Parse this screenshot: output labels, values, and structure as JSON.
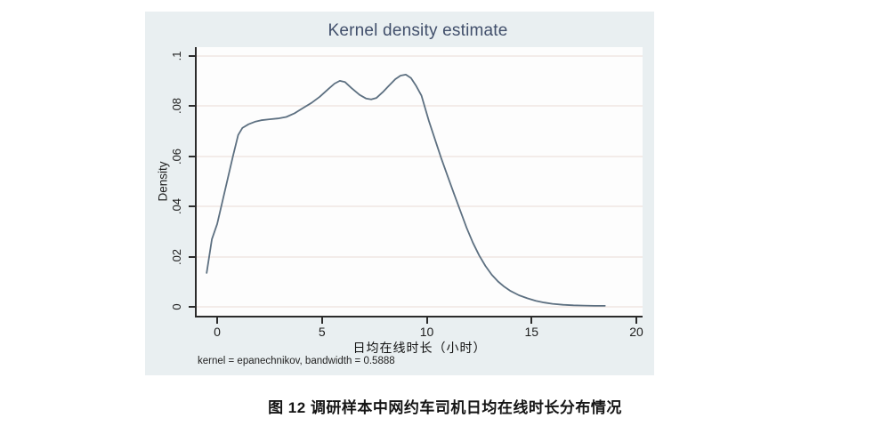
{
  "figure": {
    "title": "Kernel density estimate",
    "ylabel": "Density",
    "xlabel": "日均在线时长（小时）",
    "note": "kernel = epanechnikov, bandwidth = 0.5888",
    "caption": "图 12 调研样本中网约车司机日均在线时长分布情况"
  },
  "colors": {
    "figure_background": "#e9eff1",
    "plot_background": "#fdfdfd",
    "title": "#414f6b",
    "curve": "#5d7081",
    "axis": "#2b2b2b",
    "gridline": "#f3ece9"
  },
  "chart_data": {
    "type": "line",
    "title": "Kernel density estimate",
    "xlabel": "日均在线时长（小时）",
    "ylabel": "Density",
    "note": "kernel = epanechnikov, bandwidth = 0.5888",
    "grid": "horizontal",
    "legend": "none",
    "xlim": [
      -0.977,
      20.297
    ],
    "ylim": [
      -0.00355,
      0.10355
    ],
    "x_ticks": [
      0,
      5,
      10,
      15,
      20
    ],
    "x_tick_labels": [
      "0",
      "5",
      "10",
      "15",
      "20"
    ],
    "y_ticks": [
      0,
      0.02,
      0.04,
      0.06,
      0.08,
      0.1
    ],
    "y_tick_labels": [
      "0",
      ".02",
      ".04",
      ".06",
      ".08",
      ".1"
    ],
    "series": [
      {
        "name": "kernel-density",
        "color": "#5d7081",
        "points": [
          [
            -0.5,
            0.0135
          ],
          [
            -0.25,
            0.027
          ],
          [
            0,
            0.033
          ],
          [
            0.25,
            0.042
          ],
          [
            0.5,
            0.051
          ],
          [
            0.75,
            0.06
          ],
          [
            1.0,
            0.0685
          ],
          [
            1.2,
            0.0713
          ],
          [
            1.5,
            0.0728
          ],
          [
            1.8,
            0.0738
          ],
          [
            2.1,
            0.0744
          ],
          [
            2.5,
            0.0748
          ],
          [
            2.9,
            0.0751
          ],
          [
            3.3,
            0.0757
          ],
          [
            3.7,
            0.0772
          ],
          [
            4.1,
            0.0793
          ],
          [
            4.5,
            0.0813
          ],
          [
            4.9,
            0.0838
          ],
          [
            5.3,
            0.0868
          ],
          [
            5.6,
            0.089
          ],
          [
            5.85,
            0.0901
          ],
          [
            6.1,
            0.0896
          ],
          [
            6.4,
            0.0873
          ],
          [
            6.8,
            0.0845
          ],
          [
            7.1,
            0.0831
          ],
          [
            7.35,
            0.0827
          ],
          [
            7.6,
            0.0833
          ],
          [
            7.9,
            0.0856
          ],
          [
            8.2,
            0.0882
          ],
          [
            8.5,
            0.0908
          ],
          [
            8.75,
            0.0922
          ],
          [
            9.0,
            0.0926
          ],
          [
            9.25,
            0.0912
          ],
          [
            9.5,
            0.088
          ],
          [
            9.75,
            0.0842
          ],
          [
            10.1,
            0.0741
          ],
          [
            10.4,
            0.0666
          ],
          [
            10.7,
            0.059
          ],
          [
            11.0,
            0.052
          ],
          [
            11.3,
            0.0451
          ],
          [
            11.6,
            0.0383
          ],
          [
            11.9,
            0.0315
          ],
          [
            12.2,
            0.0256
          ],
          [
            12.5,
            0.0205
          ],
          [
            12.8,
            0.0163
          ],
          [
            13.1,
            0.0128
          ],
          [
            13.4,
            0.0101
          ],
          [
            13.7,
            0.008
          ],
          [
            14.0,
            0.0063
          ],
          [
            14.4,
            0.0046
          ],
          [
            14.8,
            0.0034
          ],
          [
            15.2,
            0.0024
          ],
          [
            15.6,
            0.0017
          ],
          [
            16.0,
            0.0012
          ],
          [
            16.5,
            0.0008
          ],
          [
            17.0,
            0.0006
          ],
          [
            17.5,
            0.0005
          ],
          [
            18.0,
            0.0004
          ],
          [
            18.5,
            0.0004
          ]
        ]
      }
    ]
  }
}
